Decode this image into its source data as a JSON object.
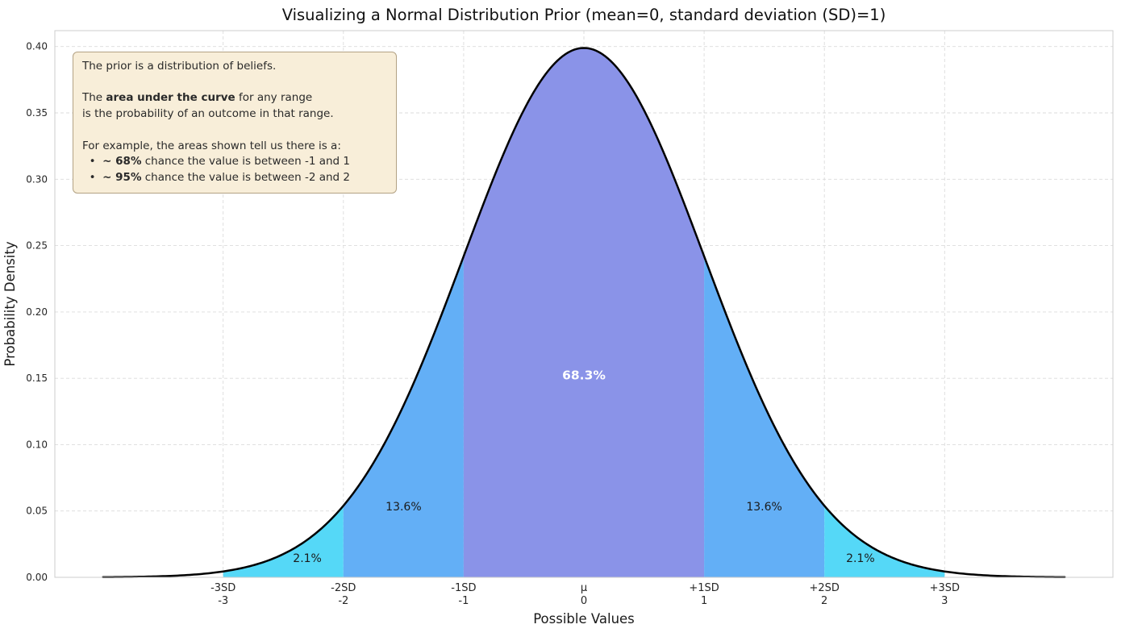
{
  "chart_data": {
    "type": "area",
    "title": "Visualizing a Normal Distribution Prior (mean=0, standard deviation (SD)=1)",
    "xlabel": "Possible Values",
    "ylabel": "Probability Density",
    "distribution": {
      "name": "normal",
      "mean": 0,
      "sd": 1
    },
    "curve": {
      "x_start": -4,
      "x_end": 4,
      "color": "#000000",
      "width": 2.5
    },
    "xlim": [
      -4.4,
      4.4
    ],
    "ylim": [
      0,
      0.412
    ],
    "grid": {
      "show": true,
      "style": "dashed",
      "color": "#dbdbdb"
    },
    "yticks": [
      {
        "v": 0.0,
        "label": "0.00"
      },
      {
        "v": 0.05,
        "label": "0.05"
      },
      {
        "v": 0.1,
        "label": "0.10"
      },
      {
        "v": 0.15,
        "label": "0.15"
      },
      {
        "v": 0.2,
        "label": "0.20"
      },
      {
        "v": 0.25,
        "label": "0.25"
      },
      {
        "v": 0.3,
        "label": "0.30"
      },
      {
        "v": 0.35,
        "label": "0.35"
      },
      {
        "v": 0.4,
        "label": "0.40"
      }
    ],
    "xticks": [
      {
        "v": -3,
        "top": "-3SD",
        "bottom": "-3"
      },
      {
        "v": -2,
        "top": "-2SD",
        "bottom": "-2"
      },
      {
        "v": -1,
        "top": "-1SD",
        "bottom": "-1"
      },
      {
        "v": 0,
        "top": "μ",
        "bottom": "0"
      },
      {
        "v": 1,
        "top": "+1SD",
        "bottom": "1"
      },
      {
        "v": 2,
        "top": "+2SD",
        "bottom": "2"
      },
      {
        "v": 3,
        "top": "+3SD",
        "bottom": "3"
      }
    ],
    "regions": [
      {
        "id": "minus3-to-minus2",
        "from": -3,
        "to": -2,
        "color": "#55d8f7",
        "label": "2.1%",
        "label_x": -2.3,
        "label_y": 0.014,
        "label_color": "#1a1a1a",
        "label_bold": false
      },
      {
        "id": "minus2-to-minus1",
        "from": -2,
        "to": -1,
        "color": "#63aff6",
        "label": "13.6%",
        "label_x": -1.5,
        "label_y": 0.053,
        "label_color": "#1a1a1a",
        "label_bold": false
      },
      {
        "id": "minus1-to-plus1",
        "from": -1,
        "to": 1,
        "color": "#8a93e8",
        "label": "68.3%",
        "label_x": 0,
        "label_y": 0.152,
        "label_color": "#ffffff",
        "label_bold": true
      },
      {
        "id": "plus1-to-plus2",
        "from": 1,
        "to": 2,
        "color": "#63aff6",
        "label": "13.6%",
        "label_x": 1.5,
        "label_y": 0.053,
        "label_color": "#1a1a1a",
        "label_bold": false
      },
      {
        "id": "plus2-to-plus3",
        "from": 2,
        "to": 3,
        "color": "#55d8f7",
        "label": "2.1%",
        "label_x": 2.3,
        "label_y": 0.014,
        "label_color": "#1a1a1a",
        "label_bold": false
      }
    ]
  },
  "annotation_box": {
    "bg": "#f8eed9",
    "border": "#b3a284",
    "lines": [
      [
        {
          "t": "The prior is a distribution of beliefs.",
          "b": false
        }
      ],
      [],
      [
        {
          "t": "The ",
          "b": false
        },
        {
          "t": "area under the curve",
          "b": true
        },
        {
          "t": " for any range",
          "b": false
        }
      ],
      [
        {
          "t": "is the probability of an outcome in that range.",
          "b": false
        }
      ],
      [],
      [
        {
          "t": "For example, the areas shown tell us there is a:",
          "b": false
        }
      ],
      [
        {
          "t": "  •  ",
          "b": false
        },
        {
          "t": "~ 68%",
          "b": true
        },
        {
          "t": " chance the value is between -1 and 1",
          "b": false
        }
      ],
      [
        {
          "t": "  •  ",
          "b": false
        },
        {
          "t": "~ 95%",
          "b": true
        },
        {
          "t": " chance the value is between -2 and 2",
          "b": false
        }
      ]
    ]
  }
}
